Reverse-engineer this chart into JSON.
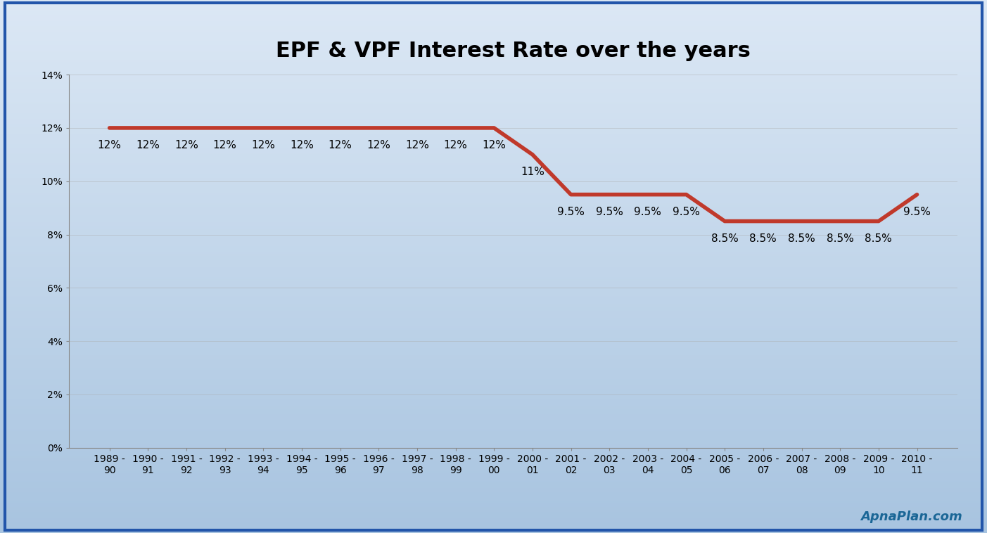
{
  "title": "EPF & VPF Interest Rate over the years",
  "categories": [
    "1989 -\n90",
    "1990 -\n91",
    "1991 -\n92",
    "1992 -\n93",
    "1993 -\n94",
    "1994 -\n95",
    "1995 -\n96",
    "1996 -\n97",
    "1997 -\n98",
    "1998 -\n99",
    "1999 -\n00",
    "2000 -\n01",
    "2001 -\n02",
    "2002 -\n03",
    "2003 -\n04",
    "2004 -\n05",
    "2005 -\n06",
    "2006 -\n07",
    "2007 -\n08",
    "2008 -\n09",
    "2009 -\n10",
    "2010 -\n11"
  ],
  "values": [
    12,
    12,
    12,
    12,
    12,
    12,
    12,
    12,
    12,
    12,
    12,
    11,
    9.5,
    9.5,
    9.5,
    9.5,
    8.5,
    8.5,
    8.5,
    8.5,
    8.5,
    9.5
  ],
  "labels": [
    "12%",
    "12%",
    "12%",
    "12%",
    "12%",
    "12%",
    "12%",
    "12%",
    "12%",
    "12%",
    "12%",
    "11%",
    "9.5%",
    "9.5%",
    "9.5%",
    "9.5%",
    "8.5%",
    "8.5%",
    "8.5%",
    "8.5%",
    "8.5%",
    "9.5%"
  ],
  "line_color": "#c0392b",
  "line_width": 4.0,
  "bg_color_top": "#dce8f5",
  "bg_color_bottom": "#a8c4e0",
  "title_fontsize": 22,
  "label_fontsize": 11,
  "tick_fontsize": 10,
  "ylim": [
    0,
    14
  ],
  "yticks": [
    0,
    2,
    4,
    6,
    8,
    10,
    12,
    14
  ],
  "ytick_labels": [
    "0%",
    "2%",
    "4%",
    "6%",
    "8%",
    "10%",
    "12%",
    "14%"
  ],
  "watermark": "ApnaPlan.com",
  "watermark_color": "#1a6696",
  "border_color": "#2255aa",
  "border_width": 3
}
